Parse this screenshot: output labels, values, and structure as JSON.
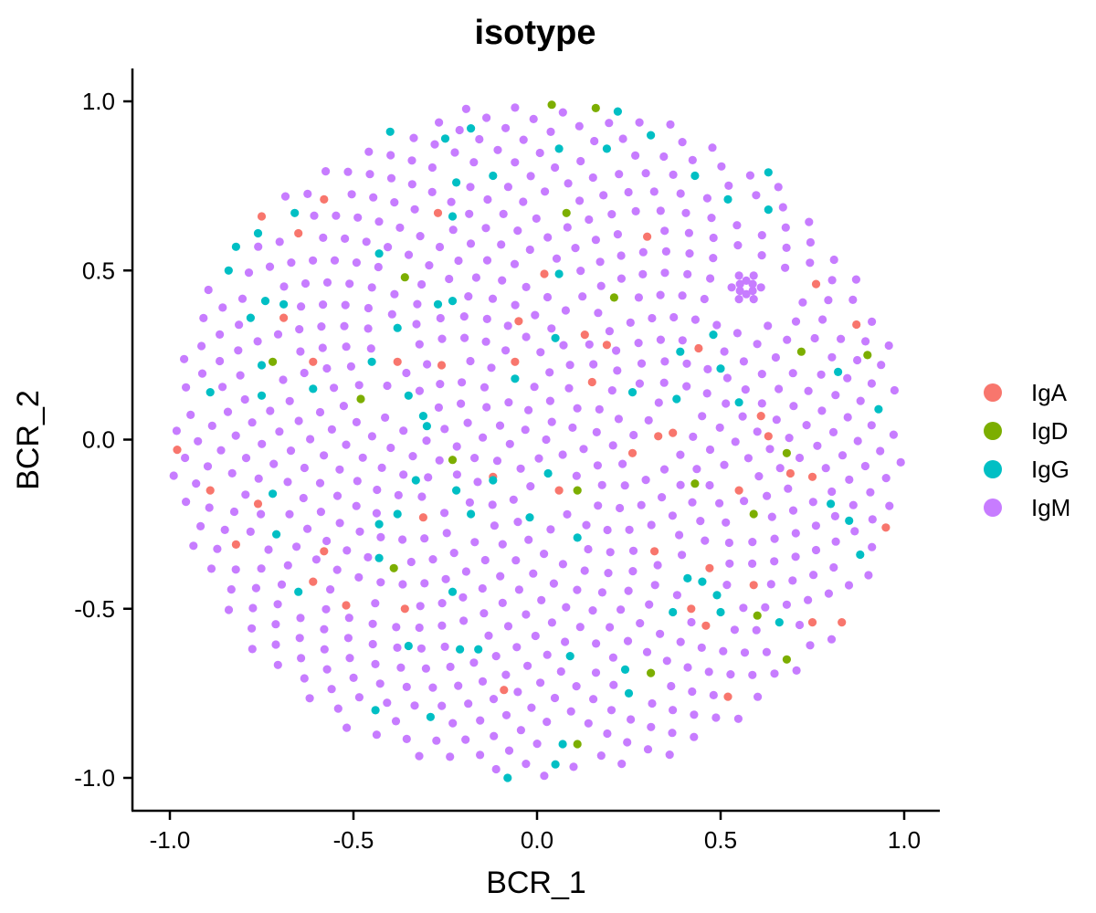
{
  "chart_data": {
    "type": "scatter",
    "title": "isotype",
    "xlabel": "BCR_1",
    "ylabel": "BCR_2",
    "xlim": [
      -1.1,
      1.1
    ],
    "ylim": [
      -1.1,
      1.1
    ],
    "xticks": [
      -1.0,
      -0.5,
      0.0,
      0.5,
      1.0
    ],
    "xtick_labels": [
      "-1.0",
      "-0.5",
      "0.0",
      "0.5",
      "1.0"
    ],
    "yticks": [
      -1.0,
      -0.5,
      0.0,
      0.5,
      1.0
    ],
    "ytick_labels": [
      "-1.0",
      "-0.5",
      "0.0",
      "0.5",
      "1.0"
    ],
    "grid": false,
    "legend_position": "right",
    "series": [
      {
        "name": "IgA",
        "color": "#F8766D",
        "points": [
          [
            -0.98,
            -0.03
          ],
          [
            -0.89,
            -0.15
          ],
          [
            -0.82,
            -0.31
          ],
          [
            -0.76,
            -0.19
          ],
          [
            -0.75,
            0.66
          ],
          [
            -0.69,
            0.36
          ],
          [
            -0.65,
            0.61
          ],
          [
            -0.61,
            0.23
          ],
          [
            -0.61,
            -0.42
          ],
          [
            -0.58,
            0.71
          ],
          [
            -0.58,
            -0.33
          ],
          [
            -0.52,
            -0.49
          ],
          [
            -0.38,
            0.23
          ],
          [
            -0.36,
            -0.5
          ],
          [
            -0.31,
            -0.23
          ],
          [
            -0.27,
            0.67
          ],
          [
            -0.26,
            0.22
          ],
          [
            -0.12,
            -0.11
          ],
          [
            -0.09,
            -0.74
          ],
          [
            -0.06,
            0.23
          ],
          [
            -0.05,
            0.35
          ],
          [
            0.02,
            0.49
          ],
          [
            0.06,
            -0.15
          ],
          [
            0.13,
            0.31
          ],
          [
            0.15,
            0.17
          ],
          [
            0.19,
            0.28
          ],
          [
            0.26,
            -0.04
          ],
          [
            0.3,
            0.6
          ],
          [
            0.32,
            -0.33
          ],
          [
            0.33,
            0.01
          ],
          [
            0.37,
            0.02
          ],
          [
            0.42,
            -0.5
          ],
          [
            0.44,
            0.27
          ],
          [
            0.46,
            -0.55
          ],
          [
            0.47,
            -0.38
          ],
          [
            0.52,
            -0.76
          ],
          [
            0.55,
            -0.15
          ],
          [
            0.59,
            -0.43
          ],
          [
            0.61,
            0.07
          ],
          [
            0.63,
            0.01
          ],
          [
            0.69,
            -0.1
          ],
          [
            0.75,
            -0.54
          ],
          [
            0.75,
            -0.11
          ],
          [
            0.76,
            0.46
          ],
          [
            0.83,
            -0.54
          ],
          [
            0.87,
            0.34
          ],
          [
            0.95,
            -0.26
          ]
        ]
      },
      {
        "name": "IgD",
        "color": "#7CAE00",
        "points": [
          [
            -0.48,
            0.12
          ],
          [
            -0.72,
            0.23
          ],
          [
            -0.39,
            -0.38
          ],
          [
            -0.36,
            0.48
          ],
          [
            -0.23,
            -0.06
          ],
          [
            0.04,
            0.99
          ],
          [
            0.08,
            0.67
          ],
          [
            0.11,
            -0.15
          ],
          [
            0.11,
            -0.9
          ],
          [
            0.16,
            0.98
          ],
          [
            0.21,
            0.42
          ],
          [
            0.31,
            -0.69
          ],
          [
            0.43,
            -0.13
          ],
          [
            0.59,
            -0.22
          ],
          [
            0.6,
            -0.52
          ],
          [
            0.68,
            -0.65
          ],
          [
            0.68,
            -0.04
          ],
          [
            0.72,
            0.26
          ],
          [
            0.9,
            0.25
          ]
        ]
      },
      {
        "name": "IgG",
        "color": "#00BFC4",
        "points": [
          [
            -0.89,
            0.14
          ],
          [
            -0.82,
            0.57
          ],
          [
            -0.84,
            0.5
          ],
          [
            -0.78,
            0.36
          ],
          [
            -0.76,
            0.61
          ],
          [
            -0.74,
            0.41
          ],
          [
            -0.75,
            0.13
          ],
          [
            -0.75,
            0.22
          ],
          [
            -0.72,
            -0.16
          ],
          [
            -0.71,
            -0.28
          ],
          [
            -0.69,
            0.4
          ],
          [
            -0.66,
            0.67
          ],
          [
            -0.65,
            -0.45
          ],
          [
            -0.61,
            0.15
          ],
          [
            -0.45,
            0.23
          ],
          [
            -0.44,
            -0.8
          ],
          [
            -0.43,
            -0.25
          ],
          [
            -0.43,
            -0.35
          ],
          [
            -0.43,
            0.55
          ],
          [
            -0.4,
            0.91
          ],
          [
            -0.38,
            0.33
          ],
          [
            -0.38,
            -0.22
          ],
          [
            -0.35,
            -0.61
          ],
          [
            -0.35,
            0.13
          ],
          [
            -0.33,
            -0.12
          ],
          [
            -0.31,
            0.07
          ],
          [
            -0.29,
            -0.82
          ],
          [
            -0.3,
            0.04
          ],
          [
            -0.27,
            0.4
          ],
          [
            -0.25,
            0.89
          ],
          [
            -0.23,
            0.66
          ],
          [
            -0.23,
            0.41
          ],
          [
            -0.23,
            -0.45
          ],
          [
            -0.22,
            -0.15
          ],
          [
            -0.21,
            -0.62
          ],
          [
            -0.22,
            0.76
          ],
          [
            -0.18,
            -0.22
          ],
          [
            -0.18,
            0.92
          ],
          [
            -0.16,
            -0.62
          ],
          [
            -0.12,
            -0.12
          ],
          [
            -0.12,
            0.78
          ],
          [
            -0.08,
            -1.0
          ],
          [
            -0.06,
            0.18
          ],
          [
            -0.02,
            -0.23
          ],
          [
            0.03,
            -0.1
          ],
          [
            0.05,
            -0.96
          ],
          [
            0.06,
            0.86
          ],
          [
            0.06,
            0.49
          ],
          [
            0.05,
            0.3
          ],
          [
            0.07,
            -0.9
          ],
          [
            0.09,
            -0.64
          ],
          [
            0.11,
            -0.29
          ],
          [
            0.19,
            0.86
          ],
          [
            0.22,
            0.97
          ],
          [
            0.24,
            -0.68
          ],
          [
            0.25,
            -0.75
          ],
          [
            0.26,
            0.14
          ],
          [
            0.31,
            0.9
          ],
          [
            0.37,
            -0.51
          ],
          [
            0.38,
            0.12
          ],
          [
            0.39,
            0.26
          ],
          [
            0.41,
            -0.41
          ],
          [
            0.43,
            0.78
          ],
          [
            0.45,
            -0.42
          ],
          [
            0.48,
            0.31
          ],
          [
            0.49,
            -0.46
          ],
          [
            0.5,
            -0.51
          ],
          [
            0.5,
            0.21
          ],
          [
            0.52,
            0.71
          ],
          [
            0.55,
            0.11
          ],
          [
            0.63,
            0.68
          ],
          [
            0.63,
            0.79
          ],
          [
            0.66,
            -0.54
          ],
          [
            0.8,
            -0.19
          ],
          [
            0.82,
            0.2
          ],
          [
            0.85,
            -0.24
          ],
          [
            0.88,
            -0.34
          ],
          [
            0.93,
            0.09
          ]
        ]
      },
      {
        "name": "IgM",
        "color": "#C77CFF",
        "points": []
      }
    ],
    "cluster_igm": {
      "center": [
        0.57,
        0.45
      ],
      "count": 12,
      "radius": 0.04
    },
    "background_series": "IgM",
    "n_points": 800,
    "radius": 1.0
  },
  "legend": {
    "items": [
      {
        "label": "IgA",
        "color": "#F8766D"
      },
      {
        "label": "IgD",
        "color": "#7CAE00"
      },
      {
        "label": "IgG",
        "color": "#00BFC4"
      },
      {
        "label": "IgM",
        "color": "#C77CFF"
      }
    ]
  }
}
